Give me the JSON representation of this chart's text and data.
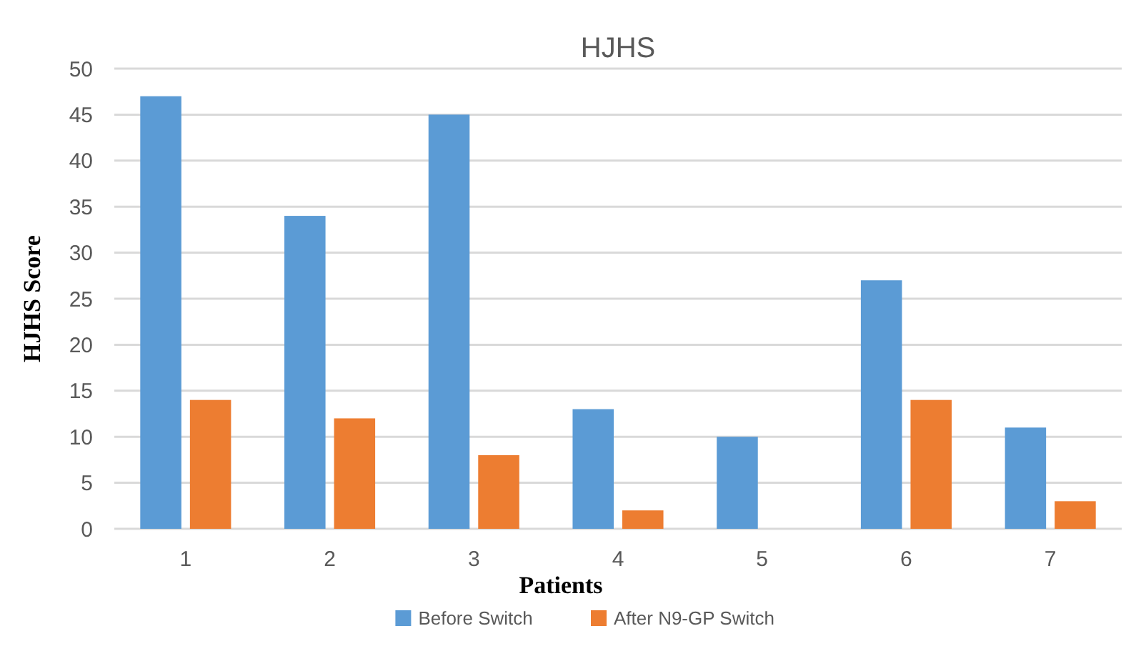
{
  "chart_data": {
    "type": "bar",
    "title": "HJHS",
    "xlabel": "Patients",
    "ylabel": "HJHS Score",
    "categories": [
      "1",
      "2",
      "3",
      "4",
      "5",
      "6",
      "7"
    ],
    "series": [
      {
        "name": "Before Switch",
        "color": "#5b9bd5",
        "values": [
          47,
          34,
          45,
          13,
          10,
          27,
          11
        ]
      },
      {
        "name": "After N9-GP Switch",
        "color": "#ed7d31",
        "values": [
          14,
          12,
          8,
          2,
          0,
          14,
          3
        ]
      }
    ],
    "ylim": [
      0,
      50
    ],
    "yticks": [
      0,
      5,
      10,
      15,
      20,
      25,
      30,
      35,
      40,
      45,
      50
    ],
    "grid": "y",
    "legend": "bottom"
  }
}
